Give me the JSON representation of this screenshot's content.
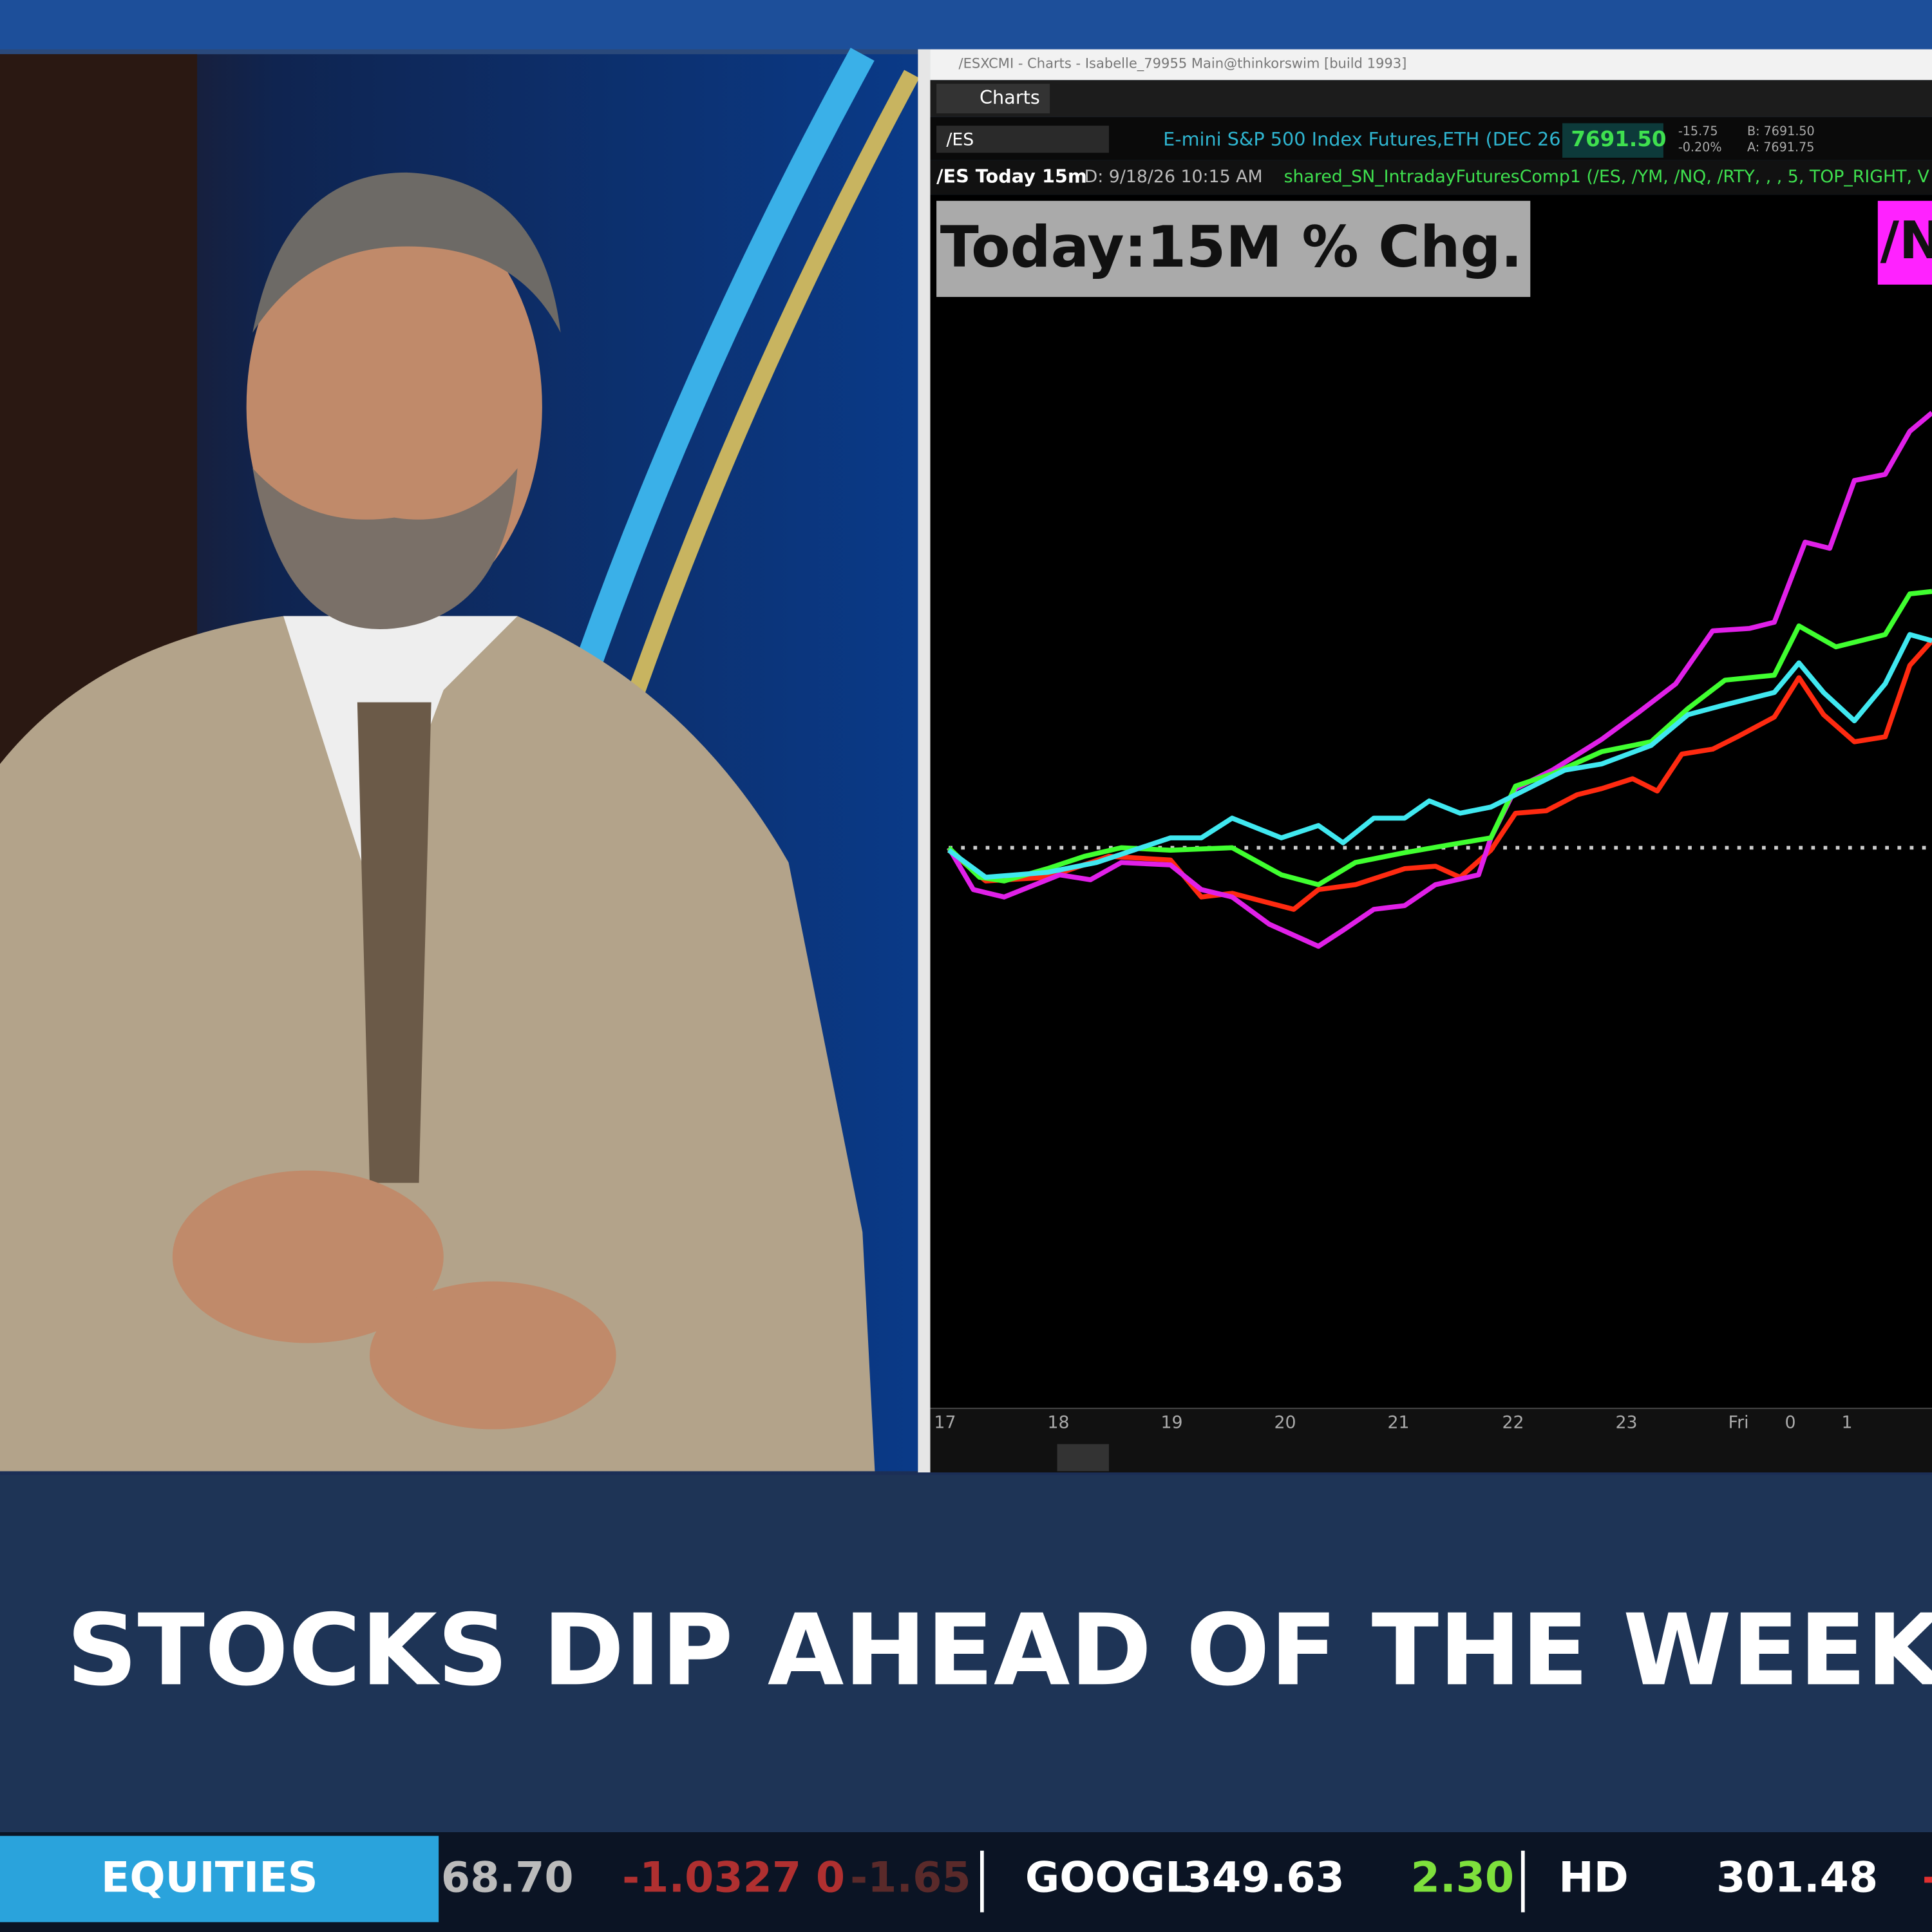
{
  "window": {
    "title": "/ESXCMI - Charts - Isabelle_79955 Main@thinkorswim [build 1993]",
    "tab": "Charts",
    "symbol": "/ES",
    "description": "E-mini S&P 500 Index Futures,ETH (DEC 26)",
    "last": "7691.50",
    "change": "-15.75",
    "change_pct": "-0.20%",
    "bid": "B: 7691.50",
    "ask": "A: 7691.75"
  },
  "chart": {
    "label": "/ES Today 15m",
    "date": "D: 9/18/26 10:15 AM",
    "study": "shared_SN_IntradayFuturesComp1 (/ES, /YM, /NQ, /RTY, , , 5, TOP_RIGHT, V",
    "overlay_title": "Today:15M % Chg.",
    "legend_tag": "/N",
    "x_labels": [
      "17",
      "18",
      "19",
      "20",
      "21",
      "22",
      "23",
      "Fri",
      "0",
      "1"
    ]
  },
  "headline": "STOCKS DIP AHEAD OF THE WEEKEN",
  "ticker": {
    "section": "EQUITIES",
    "items": [
      "68.70",
      "-1.0327 0",
      "-1.65",
      "GOOGL",
      "349.63",
      "2.30",
      "HD",
      "301.48",
      "-"
    ]
  }
}
